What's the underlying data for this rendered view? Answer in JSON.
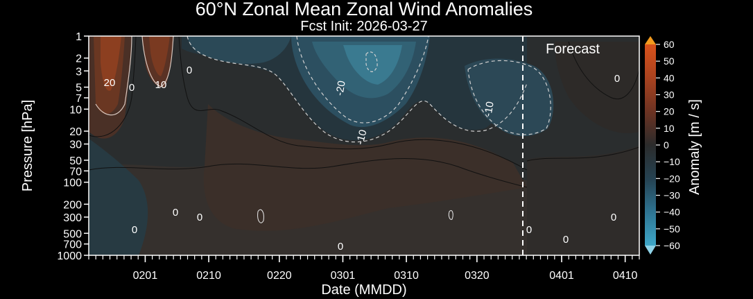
{
  "chart_data": {
    "type": "heatmap",
    "title": "60°N Zonal Mean Zonal Wind Anomalies",
    "subtitle": "Fcst Init: 2026-03-27",
    "xlabel": "Date (MMDD)",
    "ylabel": "Pressure [hPa]",
    "x_ticks": [
      "0201",
      "0210",
      "0220",
      "0301",
      "0310",
      "0320",
      "0401",
      "0410"
    ],
    "y_ticks": [
      "1",
      "2",
      "3",
      "5",
      "7",
      "10",
      "20",
      "30",
      "50",
      "70",
      "100",
      "200",
      "300",
      "500",
      "700",
      "1000"
    ],
    "y_scale": "log",
    "forecast_label": "Forecast",
    "forecast_start": "0327",
    "colorbar": {
      "label": "Anomaly [m / s]",
      "ticks": [
        "60",
        "50",
        "40",
        "30",
        "20",
        "10",
        "0",
        "−10",
        "−20",
        "−30",
        "−40",
        "−50",
        "−60"
      ],
      "range": [
        -60,
        60
      ],
      "extend": "both"
    },
    "contour_labels": [
      "20",
      "0",
      "10",
      "0",
      "-20",
      "-10",
      "-10",
      "0",
      "0",
      "0",
      "0",
      "0",
      "0",
      "0",
      "0",
      "0"
    ],
    "colors": {
      "background": "#000000",
      "plot_neutral": "#2a2a2a",
      "positive_max": "#e8641c",
      "negative_max": "#4bb8d8"
    }
  }
}
